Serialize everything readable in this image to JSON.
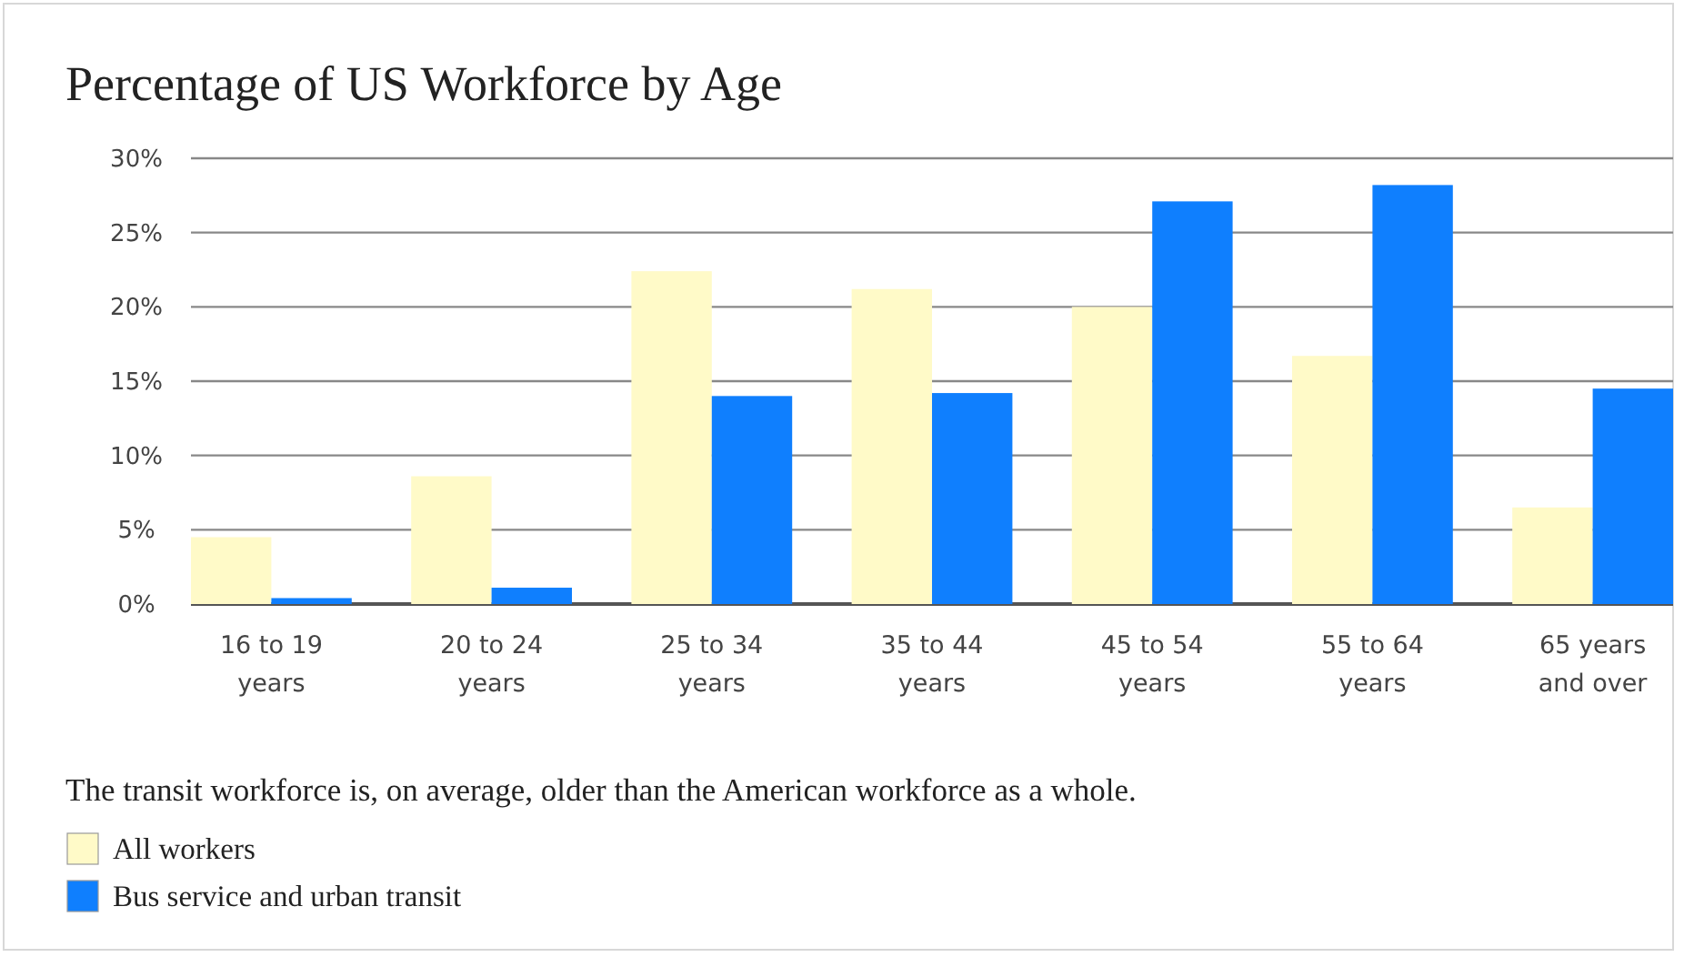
{
  "chart_data": {
    "type": "bar",
    "title": "Percentage of US Workforce by Age",
    "categories": [
      "16 to 19 years",
      "20 to 24 years",
      "25 to 34 years",
      "35 to 44 years",
      "45 to 54 years",
      "55 to 64 years",
      "65 years and over"
    ],
    "series": [
      {
        "name": "All workers",
        "color": "#fffac8",
        "values": [
          4.5,
          8.6,
          22.4,
          21.2,
          20.0,
          16.7,
          6.5
        ]
      },
      {
        "name": "Bus service and urban transit",
        "color": "#0f7ffe",
        "values": [
          0.4,
          1.1,
          14.0,
          14.2,
          27.1,
          28.2,
          14.5
        ]
      }
    ],
    "ylim": [
      0,
      30
    ],
    "yticks": [
      {
        "value": 0,
        "label": "0%"
      },
      {
        "value": 5,
        "label": "5%"
      },
      {
        "value": 10,
        "label": "10%"
      },
      {
        "value": 15,
        "label": "15%"
      },
      {
        "value": 20,
        "label": "20%"
      },
      {
        "value": 25,
        "label": "25%"
      },
      {
        "value": 30,
        "label": "30%"
      }
    ],
    "grid": "y",
    "legend": "bottom left",
    "annotations": [
      "The transit workforce is, on average, older than the American workforce as a whole."
    ]
  }
}
